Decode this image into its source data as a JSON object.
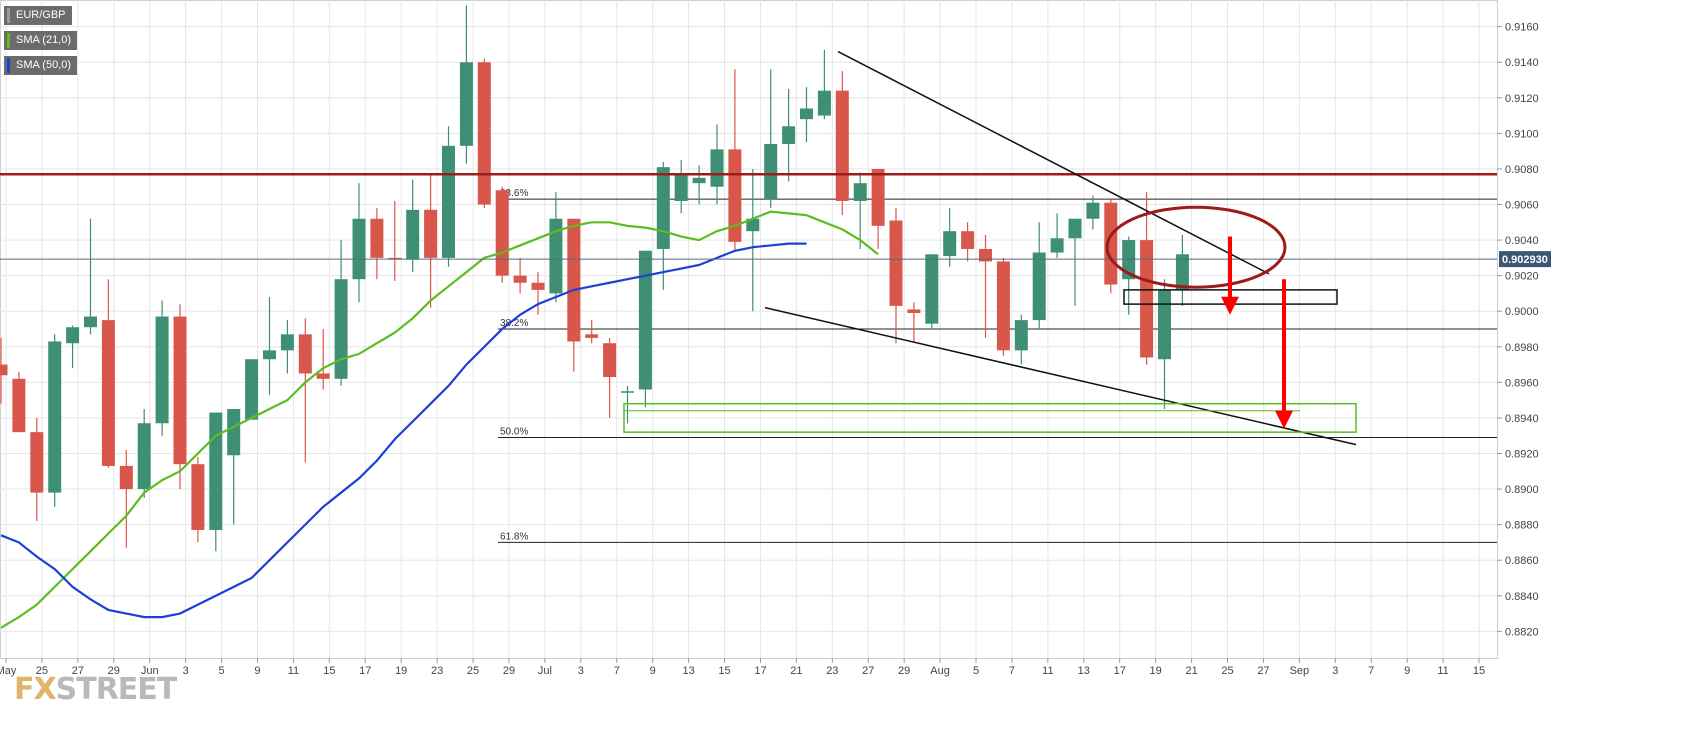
{
  "chart_data": {
    "type": "candlestick",
    "title": "",
    "symbol": "EUR/GBP",
    "indicators": [
      {
        "name": "SMA (21,0)",
        "color": "#5bbd21"
      },
      {
        "name": "SMA (50,0)",
        "color": "#1d3fd6"
      }
    ],
    "current_price": "0.902930",
    "y_range": [
      0.8805,
      0.9175
    ],
    "y_ticks": [
      "0.9160",
      "0.9140",
      "0.9120",
      "0.9100",
      "0.9080",
      "0.9060",
      "0.9040",
      "0.9020",
      "0.9000",
      "0.8980",
      "0.8960",
      "0.8940",
      "0.8920",
      "0.8900",
      "0.8880",
      "0.8860",
      "0.8840",
      "0.8820"
    ],
    "x_ticks": [
      "May",
      "25",
      "27",
      "29",
      "Jun",
      "3",
      "5",
      "9",
      "11",
      "15",
      "17",
      "19",
      "23",
      "25",
      "29",
      "Jul",
      "3",
      "7",
      "9",
      "13",
      "15",
      "17",
      "21",
      "23",
      "27",
      "29",
      "Aug",
      "5",
      "7",
      "11",
      "13",
      "17",
      "19",
      "21",
      "25",
      "27",
      "Sep",
      "3",
      "7",
      "9",
      "11",
      "15"
    ],
    "candles": [
      {
        "o": 0.897,
        "h": 0.8985,
        "l": 0.8948,
        "c": 0.8964
      },
      {
        "o": 0.8962,
        "h": 0.8966,
        "l": 0.8932,
        "c": 0.8932
      },
      {
        "o": 0.8932,
        "h": 0.894,
        "l": 0.8882,
        "c": 0.8898
      },
      {
        "o": 0.8898,
        "h": 0.8987,
        "l": 0.889,
        "c": 0.8983
      },
      {
        "o": 0.8982,
        "h": 0.8992,
        "l": 0.8968,
        "c": 0.8991
      },
      {
        "o": 0.8991,
        "h": 0.9052,
        "l": 0.8987,
        "c": 0.8997
      },
      {
        "o": 0.8995,
        "h": 0.9018,
        "l": 0.8912,
        "c": 0.8913
      },
      {
        "o": 0.8913,
        "h": 0.8922,
        "l": 0.8867,
        "c": 0.89
      },
      {
        "o": 0.89,
        "h": 0.8945,
        "l": 0.8895,
        "c": 0.8937
      },
      {
        "o": 0.8937,
        "h": 0.9006,
        "l": 0.893,
        "c": 0.8997
      },
      {
        "o": 0.8997,
        "h": 0.9004,
        "l": 0.89,
        "c": 0.8914
      },
      {
        "o": 0.8914,
        "h": 0.8918,
        "l": 0.887,
        "c": 0.8877
      },
      {
        "o": 0.8877,
        "h": 0.8943,
        "l": 0.8865,
        "c": 0.8943
      },
      {
        "o": 0.8919,
        "h": 0.8945,
        "l": 0.888,
        "c": 0.8945
      },
      {
        "o": 0.8939,
        "h": 0.8973,
        "l": 0.894,
        "c": 0.8973
      },
      {
        "o": 0.8973,
        "h": 0.9008,
        "l": 0.8953,
        "c": 0.8978
      },
      {
        "o": 0.8978,
        "h": 0.8995,
        "l": 0.8965,
        "c": 0.8987
      },
      {
        "o": 0.8987,
        "h": 0.8996,
        "l": 0.8915,
        "c": 0.8965
      },
      {
        "o": 0.8965,
        "h": 0.899,
        "l": 0.8956,
        "c": 0.8962
      },
      {
        "o": 0.8962,
        "h": 0.904,
        "l": 0.8958,
        "c": 0.9018
      },
      {
        "o": 0.9018,
        "h": 0.9072,
        "l": 0.9005,
        "c": 0.9052
      },
      {
        "o": 0.9052,
        "h": 0.9058,
        "l": 0.9018,
        "c": 0.903
      },
      {
        "o": 0.903,
        "h": 0.9062,
        "l": 0.9017,
        "c": 0.9029
      },
      {
        "o": 0.9029,
        "h": 0.9074,
        "l": 0.9022,
        "c": 0.9057
      },
      {
        "o": 0.9057,
        "h": 0.9077,
        "l": 0.9002,
        "c": 0.903
      },
      {
        "o": 0.903,
        "h": 0.9104,
        "l": 0.9025,
        "c": 0.9093
      },
      {
        "o": 0.9093,
        "h": 0.9172,
        "l": 0.9083,
        "c": 0.914
      },
      {
        "o": 0.914,
        "h": 0.9142,
        "l": 0.9058,
        "c": 0.906
      },
      {
        "o": 0.9068,
        "h": 0.907,
        "l": 0.9016,
        "c": 0.902
      },
      {
        "o": 0.902,
        "h": 0.903,
        "l": 0.901,
        "c": 0.9016
      },
      {
        "o": 0.9016,
        "h": 0.9022,
        "l": 0.8998,
        "c": 0.9012
      },
      {
        "o": 0.901,
        "h": 0.9067,
        "l": 0.9005,
        "c": 0.9052
      },
      {
        "o": 0.9052,
        "h": 0.9052,
        "l": 0.8966,
        "c": 0.8983
      },
      {
        "o": 0.8987,
        "h": 0.8995,
        "l": 0.8982,
        "c": 0.8985
      },
      {
        "o": 0.8982,
        "h": 0.8985,
        "l": 0.894,
        "c": 0.8963
      },
      {
        "o": 0.8955,
        "h": 0.8958,
        "l": 0.8937,
        "c": 0.8955
      },
      {
        "o": 0.8956,
        "h": 0.9034,
        "l": 0.8946,
        "c": 0.9034
      },
      {
        "o": 0.9035,
        "h": 0.9084,
        "l": 0.9012,
        "c": 0.9081
      },
      {
        "o": 0.9062,
        "h": 0.9085,
        "l": 0.9055,
        "c": 0.9077
      },
      {
        "o": 0.9072,
        "h": 0.9082,
        "l": 0.906,
        "c": 0.9075
      },
      {
        "o": 0.907,
        "h": 0.9105,
        "l": 0.906,
        "c": 0.9091
      },
      {
        "o": 0.9091,
        "h": 0.9136,
        "l": 0.9034,
        "c": 0.9039
      },
      {
        "o": 0.9045,
        "h": 0.908,
        "l": 0.9,
        "c": 0.9052
      },
      {
        "o": 0.9063,
        "h": 0.9136,
        "l": 0.9058,
        "c": 0.9094
      },
      {
        "o": 0.9094,
        "h": 0.9125,
        "l": 0.9073,
        "c": 0.9104
      },
      {
        "o": 0.9108,
        "h": 0.9126,
        "l": 0.9095,
        "c": 0.9114
      },
      {
        "o": 0.911,
        "h": 0.9147,
        "l": 0.9108,
        "c": 0.9124
      },
      {
        "o": 0.9124,
        "h": 0.9135,
        "l": 0.9054,
        "c": 0.9062
      },
      {
        "o": 0.9062,
        "h": 0.9078,
        "l": 0.9035,
        "c": 0.9072
      },
      {
        "o": 0.908,
        "h": 0.908,
        "l": 0.9035,
        "c": 0.9048
      },
      {
        "o": 0.9051,
        "h": 0.9058,
        "l": 0.8982,
        "c": 0.9003
      },
      {
        "o": 0.9001,
        "h": 0.9005,
        "l": 0.8983,
        "c": 0.8999
      },
      {
        "o": 0.8993,
        "h": 0.9032,
        "l": 0.899,
        "c": 0.9032
      },
      {
        "o": 0.9031,
        "h": 0.9058,
        "l": 0.9025,
        "c": 0.9045
      },
      {
        "o": 0.9045,
        "h": 0.905,
        "l": 0.9028,
        "c": 0.9035
      },
      {
        "o": 0.9035,
        "h": 0.9043,
        "l": 0.8985,
        "c": 0.9028
      },
      {
        "o": 0.9028,
        "h": 0.903,
        "l": 0.8975,
        "c": 0.8978
      },
      {
        "o": 0.8978,
        "h": 0.8998,
        "l": 0.897,
        "c": 0.8995
      },
      {
        "o": 0.8995,
        "h": 0.905,
        "l": 0.899,
        "c": 0.9033
      },
      {
        "o": 0.9033,
        "h": 0.9055,
        "l": 0.903,
        "c": 0.9041
      },
      {
        "o": 0.9041,
        "h": 0.9052,
        "l": 0.9003,
        "c": 0.9052
      },
      {
        "o": 0.9052,
        "h": 0.9065,
        "l": 0.9046,
        "c": 0.9061
      },
      {
        "o": 0.9061,
        "h": 0.9063,
        "l": 0.901,
        "c": 0.9015
      },
      {
        "o": 0.9018,
        "h": 0.9042,
        "l": 0.8998,
        "c": 0.904
      },
      {
        "o": 0.904,
        "h": 0.9067,
        "l": 0.897,
        "c": 0.8974
      },
      {
        "o": 0.8973,
        "h": 0.9018,
        "l": 0.8945,
        "c": 0.9012
      },
      {
        "o": 0.9012,
        "h": 0.9043,
        "l": 0.9003,
        "c": 0.9032
      }
    ],
    "sma21": [
      [
        0.8822,
        0.8828
      ],
      [
        0.8835,
        0.8845
      ],
      [
        0.8855,
        0.8865
      ],
      [
        0.8875,
        0.8885
      ],
      [
        0.8898,
        0.8905
      ],
      [
        0.891,
        0.892
      ],
      [
        0.893,
        0.8935
      ],
      [
        0.894,
        0.8945
      ],
      [
        0.895,
        0.896
      ],
      [
        0.8968,
        0.8973
      ],
      [
        0.8976,
        0.8982
      ],
      [
        0.8988,
        0.8996
      ],
      [
        0.9006,
        0.9014
      ],
      [
        0.9022,
        0.903
      ],
      [
        0.9033,
        0.9037
      ],
      [
        0.9041,
        0.9045
      ],
      [
        0.9048,
        0.905
      ],
      [
        0.905,
        0.9048
      ],
      [
        0.9047,
        0.9045
      ],
      [
        0.9042,
        0.904
      ],
      [
        0.9045,
        0.9048
      ],
      [
        0.9052,
        0.9056
      ],
      [
        0.9055,
        0.9054
      ],
      [
        0.905,
        0.9046
      ],
      [
        0.904,
        0.9032
      ]
    ],
    "sma50": [
      [
        0.8874,
        0.887
      ],
      [
        0.8862,
        0.8855
      ],
      [
        0.8845,
        0.8838
      ],
      [
        0.8832,
        0.883
      ],
      [
        0.8828,
        0.8828
      ],
      [
        0.883,
        0.8835
      ],
      [
        0.884,
        0.8845
      ],
      [
        0.885,
        0.886
      ],
      [
        0.887,
        0.888
      ],
      [
        0.889,
        0.8898
      ],
      [
        0.8906,
        0.8916
      ],
      [
        0.8928,
        0.8938
      ],
      [
        0.8948,
        0.8958
      ],
      [
        0.897,
        0.898
      ],
      [
        0.899,
        0.8998
      ],
      [
        0.9004,
        0.9008
      ],
      [
        0.9012,
        0.9014
      ],
      [
        0.9016,
        0.9018
      ],
      [
        0.902,
        0.9022
      ],
      [
        0.9024,
        0.9026
      ],
      [
        0.903,
        0.9034
      ],
      [
        0.9036,
        0.9037
      ],
      [
        0.9038,
        0.9038
      ]
    ],
    "horizontal_levels": [
      {
        "label": "23.6%",
        "value": 0.9063
      },
      {
        "label": "38.2%",
        "value": 0.899
      },
      {
        "label": "50.0%",
        "value": 0.8929
      },
      {
        "label": "61.8%",
        "value": 0.887
      }
    ],
    "resistance_level": 0.9077,
    "zones": [
      {
        "from": 0.9012,
        "to": 0.9004,
        "color": "#111111"
      },
      {
        "from": 0.8948,
        "to": 0.8932,
        "color": "#5bbd21"
      }
    ],
    "trendlines": [
      {
        "from": [
          0.9146
        ],
        "to": [
          0.9021
        ]
      },
      {
        "from": [
          0.9002
        ],
        "to": [
          0.8925
        ]
      }
    ],
    "colors": {
      "bull": "#3e8f74",
      "bear": "#d9574a",
      "resistance": "#9c1b1b",
      "arrow": "#ff0000",
      "grid": "#e6e6e6"
    },
    "logo": {
      "fx": "FX",
      "rest": "STREET"
    }
  }
}
